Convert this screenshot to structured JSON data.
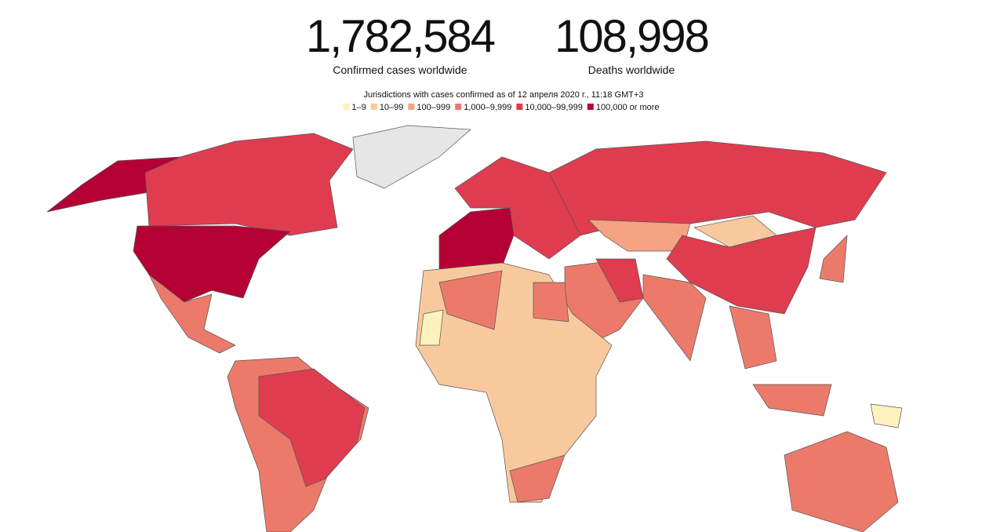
{
  "header": {
    "stats": [
      {
        "value": "1,782,584",
        "label": "Confirmed cases worldwide"
      },
      {
        "value": "108,998",
        "label": "Deaths worldwide"
      }
    ]
  },
  "legend": {
    "title": "Jurisdictions with cases confirmed as of 12 апреля 2020 г., 11:18 GMT+3",
    "items": [
      {
        "label": "1–9",
        "color": "#fdf1bd"
      },
      {
        "label": "10–99",
        "color": "#f9c99e"
      },
      {
        "label": "100–999",
        "color": "#f4a383"
      },
      {
        "label": "1,000–9,999",
        "color": "#ec7a6b"
      },
      {
        "label": "10,000–99,999",
        "color": "#e03c50"
      },
      {
        "label": "100,000 or more",
        "color": "#b50034"
      }
    ]
  }
}
